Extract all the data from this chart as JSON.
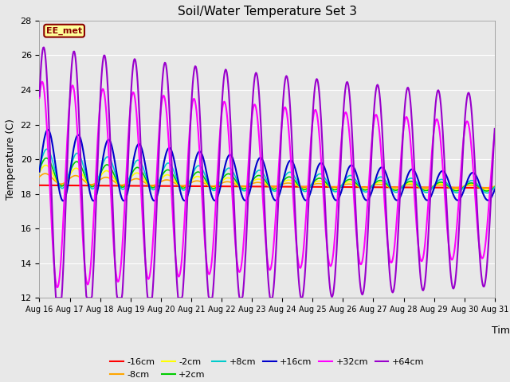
{
  "title": "Soil/Water Temperature Set 3",
  "xlabel": "Time",
  "ylabel": "Temperature (C)",
  "ylim": [
    12,
    28
  ],
  "yticks": [
    12,
    14,
    16,
    18,
    20,
    22,
    24,
    26,
    28
  ],
  "xtick_labels": [
    "Aug 16",
    "Aug 17",
    "Aug 18",
    "Aug 19",
    "Aug 20",
    "Aug 21",
    "Aug 22",
    "Aug 23",
    "Aug 24",
    "Aug 25",
    "Aug 26",
    "Aug 27",
    "Aug 28",
    "Aug 29",
    "Aug 30",
    "Aug 31"
  ],
  "background_color": "#e8e8e8",
  "plot_bg_color": "#e8e8e8",
  "annotation_text": "EE_met",
  "annotation_bg": "#ffff99",
  "annotation_border": "#8b0000",
  "series_colors": {
    "-16cm": "#ff0000",
    "-8cm": "#ffa500",
    "-2cm": "#ffff00",
    "+2cm": "#00cc00",
    "+8cm": "#00cccc",
    "+16cm": "#0000cc",
    "+32cm": "#ff00ff",
    "+64cm": "#9900cc"
  },
  "base_mean": 18.5,
  "n_days": 15
}
